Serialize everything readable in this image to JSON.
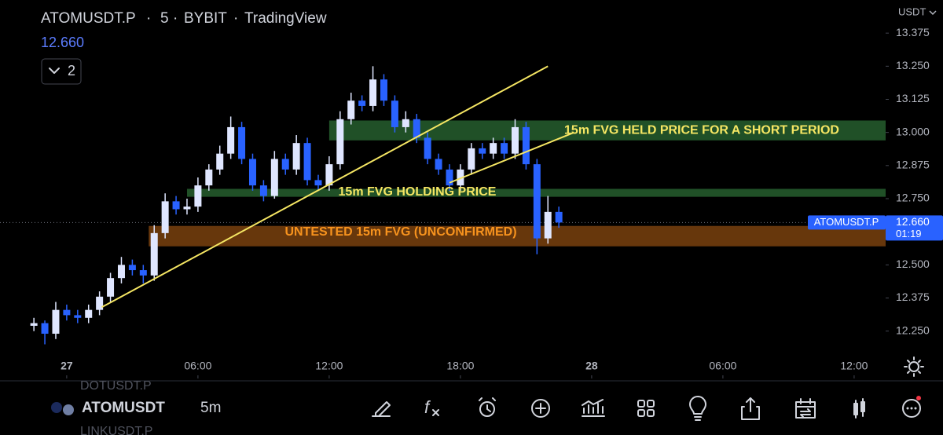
{
  "header": {
    "symbol": "ATOMUSDT.P",
    "interval": "5",
    "exchange": "BYBIT",
    "platform": "TradingView",
    "price": "12.660",
    "indicator_count": "2",
    "currency": "USDT"
  },
  "chart_data": {
    "type": "candlestick",
    "up_color": "#dfe6ff",
    "down_color": "#2962ff",
    "grid": false,
    "x": [
      -1.5,
      -1,
      -0.5,
      0,
      0.5,
      1,
      1.5,
      2,
      2.5,
      3,
      3.5,
      4,
      4.5,
      5,
      5.5,
      6,
      6.5,
      7,
      7.5,
      8,
      8.5,
      9,
      9.5,
      10,
      10.5,
      11,
      11.5,
      12,
      12.5,
      13,
      13.5,
      14,
      14.5,
      15,
      15.5,
      16,
      16.5,
      17,
      17.5,
      18,
      18.5,
      19,
      19.5,
      20,
      20.5,
      21,
      21.5,
      22,
      22.5
    ],
    "open": [
      12.27,
      12.28,
      12.24,
      12.33,
      12.31,
      12.3,
      12.33,
      12.38,
      12.45,
      12.5,
      12.48,
      12.46,
      12.62,
      12.74,
      12.71,
      12.72,
      12.8,
      12.86,
      12.92,
      13.02,
      12.9,
      12.8,
      12.76,
      12.9,
      12.86,
      12.96,
      12.82,
      12.8,
      12.88,
      13.05,
      13.12,
      13.1,
      13.2,
      13.12,
      13.02,
      13.05,
      12.98,
      12.9,
      12.86,
      12.8,
      12.86,
      12.94,
      12.92,
      12.96,
      12.92,
      13.02,
      12.88,
      12.6,
      12.7
    ],
    "high": [
      12.3,
      12.29,
      12.36,
      12.35,
      12.33,
      12.35,
      12.4,
      12.47,
      12.53,
      12.52,
      12.5,
      12.65,
      12.77,
      12.76,
      12.75,
      12.83,
      12.88,
      12.95,
      13.06,
      13.04,
      12.92,
      12.82,
      12.93,
      12.92,
      12.99,
      12.98,
      12.84,
      12.91,
      13.08,
      13.15,
      13.14,
      13.25,
      13.22,
      13.14,
      13.08,
      13.07,
      13.0,
      12.92,
      12.88,
      12.88,
      12.96,
      12.96,
      12.98,
      12.98,
      13.05,
      13.04,
      12.9,
      12.76,
      12.72
    ],
    "low": [
      12.25,
      12.2,
      12.22,
      12.29,
      12.28,
      12.28,
      12.31,
      12.36,
      12.43,
      12.46,
      12.43,
      12.44,
      12.6,
      12.69,
      12.69,
      12.7,
      12.78,
      12.84,
      12.9,
      12.88,
      12.78,
      12.74,
      12.75,
      12.84,
      12.84,
      12.8,
      12.78,
      12.78,
      12.86,
      13.03,
      13.08,
      13.08,
      13.1,
      13.0,
      13.0,
      12.96,
      12.88,
      12.84,
      12.78,
      12.78,
      12.84,
      12.9,
      12.9,
      12.9,
      12.9,
      12.86,
      12.54,
      12.58,
      12.64
    ],
    "close": [
      12.28,
      12.24,
      12.33,
      12.31,
      12.3,
      12.33,
      12.38,
      12.45,
      12.5,
      12.48,
      12.46,
      12.62,
      12.74,
      12.71,
      12.72,
      12.8,
      12.86,
      12.92,
      13.02,
      12.9,
      12.8,
      12.76,
      12.9,
      12.86,
      12.96,
      12.82,
      12.8,
      12.88,
      13.05,
      13.12,
      13.1,
      13.2,
      13.12,
      13.02,
      13.05,
      12.98,
      12.9,
      12.86,
      12.8,
      12.86,
      12.94,
      12.92,
      12.96,
      12.92,
      13.02,
      12.88,
      12.6,
      12.7,
      12.66
    ],
    "xlim": [
      -3.05,
      37.44
    ],
    "ylim": [
      12.08,
      13.5
    ],
    "xticks": [
      {
        "value": 0,
        "label": "27"
      },
      {
        "value": 6,
        "label": "06:00"
      },
      {
        "value": 12,
        "label": "12:00"
      },
      {
        "value": 18,
        "label": "18:00"
      },
      {
        "value": 24,
        "label": "28"
      },
      {
        "value": 30,
        "label": "06:00"
      },
      {
        "value": 36,
        "label": "12:00"
      }
    ],
    "yticks": [
      {
        "value": 12.25,
        "label": "12.250"
      },
      12.375,
      {
        "value": 12.5,
        "label": "12.500"
      },
      {
        "value": 12.75,
        "label": "12.750"
      },
      12.875,
      {
        "value": 13,
        "label": "13.000"
      },
      13.125,
      {
        "value": 13.25,
        "label": "13.250"
      },
      13.375
    ],
    "last_price": {
      "value": 12.66,
      "label": "12.660",
      "symbol": "ATOMUSDT.P",
      "countdown": "01:19",
      "color": "#2962ff"
    },
    "zones": [
      {
        "low": 12.97,
        "high": 13.045,
        "x_start": 12,
        "color": "#2b6b34",
        "label": "15m FVG HELD PRICE FOR A SHORT PERIOD",
        "label_color": "#f5e663"
      },
      {
        "low": 12.757,
        "high": 12.787,
        "x_start": 5.5,
        "color": "#2b6b34",
        "label": "15m FVG HOLDING PRICE",
        "label_color": "#f5e663"
      },
      {
        "low": 12.57,
        "high": 12.647,
        "x_start": 3.75,
        "color": "#8a4a10",
        "label": "UNTESTED 15m FVG (UNCONFIRMED)",
        "label_color": "#f7931e"
      }
    ],
    "trend_lines": [
      {
        "x": [
          1.6,
          22
        ],
        "y": [
          12.34,
          13.25
        ],
        "color": "#f5e663"
      },
      {
        "x": [
          17.5,
          23.2
        ],
        "y": [
          12.81,
          13.0
        ],
        "color": "#f5e663"
      }
    ]
  },
  "toolbar": {
    "symbol": "ATOMUSDT",
    "interval": "5m",
    "prev_symbol": "DOTUSDT.P",
    "next_symbol": "LINKUSDT.P"
  }
}
